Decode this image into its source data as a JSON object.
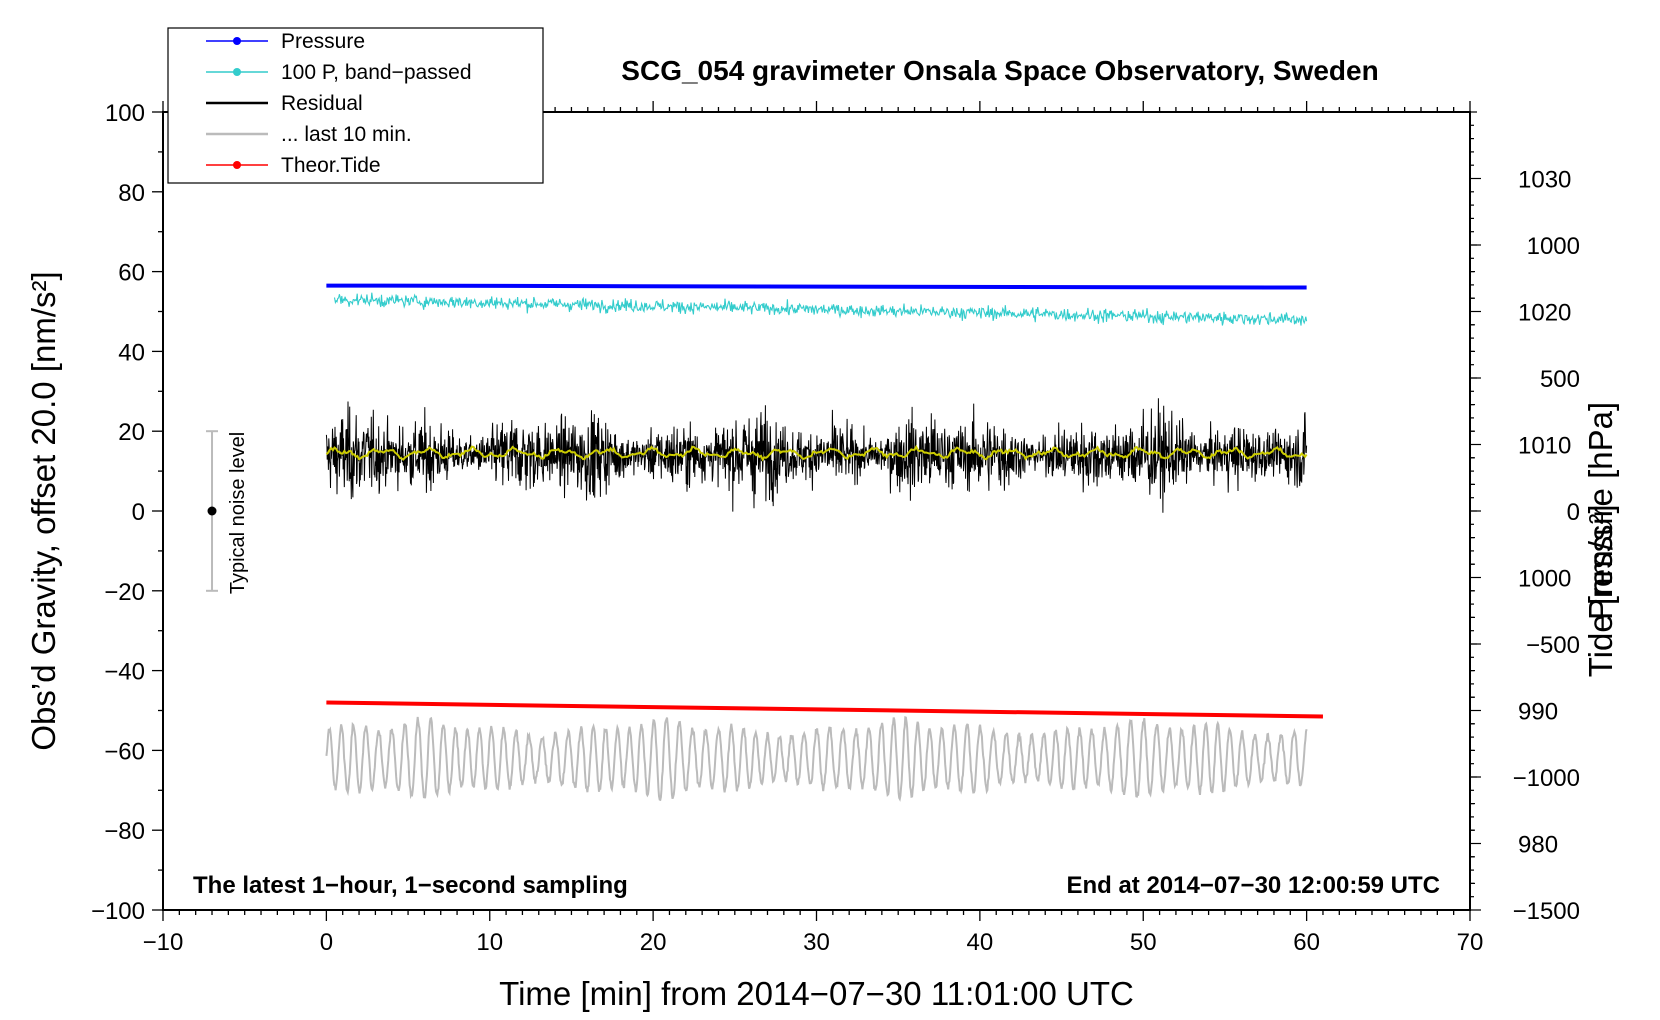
{
  "chart_data": {
    "type": "line",
    "title": "SCG_054 gravimeter Onsala Space Observatory, Sweden",
    "xlabel": "Time [min] from 2014−07−30 11:01:00 UTC",
    "ylabel_left": "Obs’d Gravity, offset 20.0 [nm/s²]",
    "ylabel_pressure": "Pressure [hPa]",
    "ylabel_tide": "Tide [nm/s²]",
    "xlim": [
      -10,
      70
    ],
    "ylim": [
      -100,
      100
    ],
    "pressure_lim": [
      975,
      1035
    ],
    "tide_lim": [
      -1500,
      1500
    ],
    "x_ticks": [
      -10,
      0,
      10,
      20,
      30,
      40,
      50,
      60,
      70
    ],
    "x_tick_labels": [
      "−10",
      "0",
      "10",
      "20",
      "30",
      "40",
      "50",
      "60",
      "70"
    ],
    "y_ticks": [
      -100,
      -80,
      -60,
      -40,
      -20,
      0,
      20,
      40,
      60,
      80,
      100
    ],
    "y_tick_labels": [
      "−100",
      "−80",
      "−60",
      "−40",
      "−20",
      "0",
      "20",
      "40",
      "60",
      "80",
      "100"
    ],
    "pressure_ticks": [
      980,
      990,
      1000,
      1010,
      1020,
      1030
    ],
    "pressure_tick_labels": [
      "980",
      "990",
      "1000",
      "1010",
      "1020",
      "1030"
    ],
    "tide_ticks": [
      -1500,
      -1000,
      -500,
      0,
      500,
      1000
    ],
    "tide_tick_labels": [
      "−1500",
      "−1000",
      "−500",
      "0",
      "500",
      "1000"
    ],
    "legend": [
      {
        "label": "Pressure",
        "color": "#0000ff",
        "marker": true
      },
      {
        "label": "100 P, band−passed",
        "color": "#33cccc",
        "marker": true
      },
      {
        "label": "Residual",
        "color": "#000000",
        "marker": false
      },
      {
        "label": "... last 10 min.",
        "color": "#bbbbbb",
        "marker": false
      },
      {
        "label": "Theor.Tide",
        "color": "#ff0000",
        "marker": true
      }
    ],
    "annotations": {
      "bottom_left": "The latest 1−hour, 1−second sampling",
      "bottom_right": "End at 2014−07−30 12:00:59 UTC",
      "noise": "Typical noise level"
    },
    "noise_bar": {
      "x": -7,
      "center": 0,
      "low": -20,
      "high": 20
    },
    "series": [
      {
        "name": "Pressure",
        "axis": "left",
        "color": "#0000ff",
        "x": [
          0,
          60
        ],
        "y": [
          56.5,
          56.0
        ]
      },
      {
        "name": "100 P, band−passed",
        "axis": "left",
        "color": "#33cccc",
        "x_range": [
          0.5,
          60
        ],
        "trend": [
          53,
          48
        ],
        "amplitude": 2.5
      },
      {
        "name": "Residual",
        "axis": "left",
        "color": "#000000",
        "x_range": [
          0,
          60
        ],
        "mean": 14,
        "amplitude": 9,
        "max": 35,
        "min": -1
      },
      {
        "name": "Residual smoothed",
        "axis": "left",
        "color": "#cccc00",
        "x_range": [
          0,
          60
        ],
        "mean": 14.5
      },
      {
        "name": "Theor.Tide",
        "axis": "left",
        "color": "#ff0000",
        "x": [
          0,
          61
        ],
        "y": [
          -48,
          -51.5
        ]
      },
      {
        "name": "... last 10 min.",
        "axis": "left",
        "color": "#bbbbbb",
        "x_range": [
          0,
          60
        ],
        "mean": -62,
        "min": -75,
        "max": -48
      }
    ]
  }
}
